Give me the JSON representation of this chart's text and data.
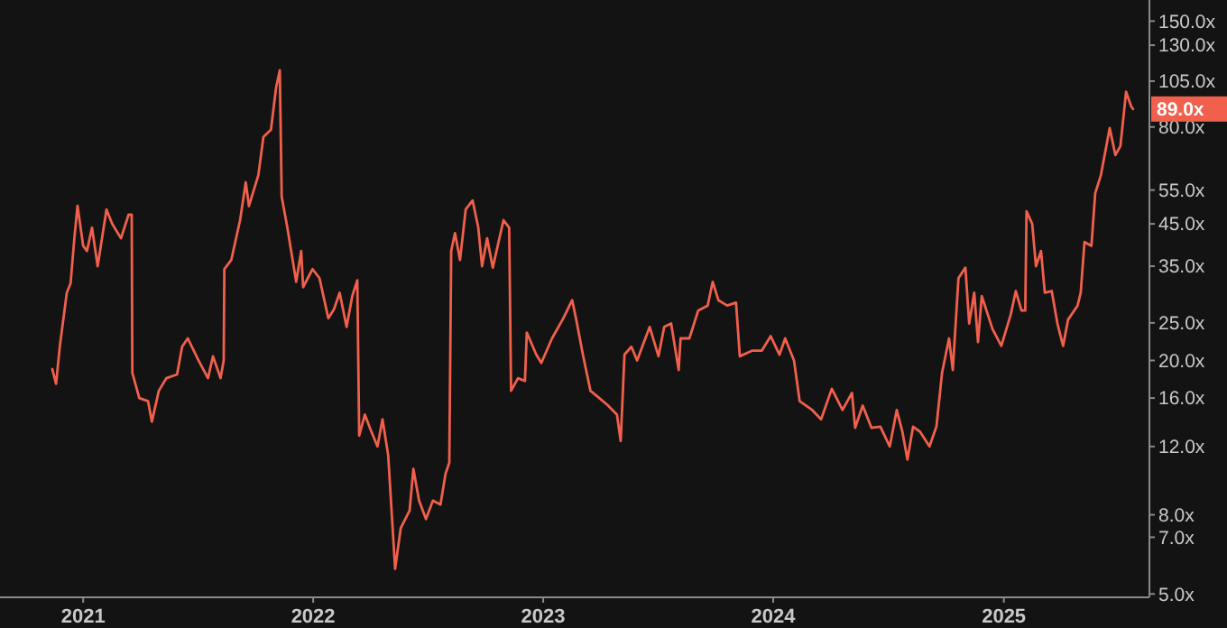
{
  "chart_data": {
    "type": "line",
    "log": true,
    "grid": false,
    "xlim": [
      "2020-08-22",
      "2025-08-20"
    ],
    "xticks": [
      {
        "value": "2021-01-01",
        "label": "2021"
      },
      {
        "value": "2022-01-01",
        "label": "2022"
      },
      {
        "value": "2023-01-01",
        "label": "2023"
      },
      {
        "value": "2024-01-01",
        "label": "2024"
      },
      {
        "value": "2025-01-01",
        "label": "2025"
      }
    ],
    "ylim": [
      4.9,
      170
    ],
    "yticks": [
      {
        "value": 5,
        "label": "5.0x"
      },
      {
        "value": 7,
        "label": "7.0x"
      },
      {
        "value": 8,
        "label": "8.0x"
      },
      {
        "value": 12,
        "label": "12.0x"
      },
      {
        "value": 16,
        "label": "16.0x"
      },
      {
        "value": 20,
        "label": "20.0x"
      },
      {
        "value": 25,
        "label": "25.0x"
      },
      {
        "value": 35,
        "label": "35.0x"
      },
      {
        "value": 45,
        "label": "45.0x"
      },
      {
        "value": 55,
        "label": "55.0x"
      },
      {
        "value": 80,
        "label": "80.0x"
      },
      {
        "value": 105,
        "label": "105.0x"
      },
      {
        "value": 130,
        "label": "130.0x"
      },
      {
        "value": 150,
        "label": "150.0x"
      }
    ],
    "annotations": [
      {
        "text": "89.0x",
        "x": "2025-07-25",
        "y": 89
      }
    ],
    "series": [
      {
        "color": "#f0604c",
        "x": [
          "2020-11-13",
          "2020-11-19",
          "2020-11-25",
          "2020-12-06",
          "2020-12-12",
          "2020-12-18",
          "2020-12-23",
          "2021-01-01",
          "2021-01-07",
          "2021-01-15",
          "2021-01-24",
          "2021-02-07",
          "2021-02-16",
          "2021-03-02",
          "2021-03-14",
          "2021-03-19",
          "2021-03-20",
          "2021-03-31",
          "2021-04-14",
          "2021-04-20",
          "2021-05-01",
          "2021-05-13",
          "2021-05-30",
          "2021-06-07",
          "2021-06-16",
          "2021-07-03",
          "2021-07-18",
          "2021-07-26",
          "2021-08-07",
          "2021-08-12",
          "2021-08-13",
          "2021-08-24",
          "2021-09-07",
          "2021-09-16",
          "2021-09-21",
          "2021-10-06",
          "2021-10-14",
          "2021-10-26",
          "2021-11-03",
          "2021-11-09",
          "2021-11-12",
          "2021-11-21",
          "2021-12-05",
          "2021-12-13",
          "2021-12-16",
          "2021-12-31",
          "2022-01-11",
          "2022-01-25",
          "2022-02-03",
          "2022-02-12",
          "2022-02-23",
          "2022-03-04",
          "2022-03-12",
          "2022-03-15",
          "2022-03-24",
          "2022-04-01",
          "2022-04-13",
          "2022-04-21",
          "2022-04-30",
          "2022-05-11",
          "2022-05-20",
          "2022-06-03",
          "2022-06-09",
          "2022-06-18",
          "2022-06-29",
          "2022-07-10",
          "2022-07-22",
          "2022-07-30",
          "2022-08-05",
          "2022-08-08",
          "2022-08-14",
          "2022-08-22",
          "2022-08-31",
          "2022-09-11",
          "2022-09-20",
          "2022-09-26",
          "2022-10-04",
          "2022-10-13",
          "2022-10-30",
          "2022-11-08",
          "2022-11-11",
          "2022-11-22",
          "2022-12-03",
          "2022-12-06",
          "2022-12-21",
          "2022-12-29",
          "2023-01-15",
          "2023-02-02",
          "2023-02-16",
          "2023-02-22",
          "2023-03-05",
          "2023-03-17",
          "2023-03-31",
          "2023-04-14",
          "2023-04-28",
          "2023-05-04",
          "2023-05-10",
          "2023-05-21",
          "2023-05-30",
          "2023-06-19",
          "2023-07-03",
          "2023-07-12",
          "2023-07-23",
          "2023-08-04",
          "2023-08-07",
          "2023-08-21",
          "2023-09-04",
          "2023-09-19",
          "2023-09-27",
          "2023-10-06",
          "2023-10-20",
          "2023-11-03",
          "2023-11-09",
          "2023-11-29",
          "2023-12-14",
          "2023-12-28",
          "2024-01-11",
          "2024-01-20",
          "2024-02-03",
          "2024-02-12",
          "2024-03-03",
          "2024-03-17",
          "2024-04-03",
          "2024-04-20",
          "2024-05-05",
          "2024-05-10",
          "2024-05-22",
          "2024-06-05",
          "2024-06-19",
          "2024-07-04",
          "2024-07-15",
          "2024-07-24",
          "2024-08-01",
          "2024-08-10",
          "2024-08-21",
          "2024-09-05",
          "2024-09-16",
          "2024-09-25",
          "2024-10-06",
          "2024-10-12",
          "2024-10-21",
          "2024-11-01",
          "2024-11-07",
          "2024-11-15",
          "2024-11-21",
          "2024-11-27",
          "2024-12-14",
          "2024-12-28",
          "2025-01-12",
          "2025-01-20",
          "2025-01-29",
          "2025-02-04",
          "2025-02-06",
          "2025-02-15",
          "2025-02-21",
          "2025-03-01",
          "2025-03-07",
          "2025-03-18",
          "2025-03-27",
          "2025-04-05",
          "2025-04-13",
          "2025-04-28",
          "2025-05-03",
          "2025-05-09",
          "2025-05-20",
          "2025-05-26",
          "2025-06-04",
          "2025-06-18",
          "2025-06-27",
          "2025-07-05",
          "2025-07-14",
          "2025-07-22",
          "2025-07-25"
        ],
        "values": [
          19,
          17.4,
          21.8,
          29.9,
          31.6,
          41.3,
          50.1,
          39.5,
          38.3,
          44,
          35,
          49,
          45,
          41.3,
          47.5,
          47.5,
          18.6,
          16,
          15.7,
          13.9,
          16.7,
          18,
          18.4,
          21.7,
          22.8,
          20,
          18,
          20.5,
          18,
          20,
          34.4,
          36.3,
          46,
          57.6,
          50,
          60.1,
          75.4,
          78.7,
          100.8,
          112,
          52.9,
          44,
          31.9,
          38.3,
          30.9,
          34.4,
          32.6,
          25.7,
          27.1,
          29.9,
          24.4,
          29.3,
          32.2,
          12.8,
          14.5,
          13.4,
          12,
          14.1,
          11.4,
          5.8,
          7.4,
          8.2,
          10.5,
          8.7,
          7.8,
          8.7,
          8.5,
          10.2,
          10.9,
          38.3,
          42.6,
          36.3,
          49,
          51.7,
          44,
          35,
          41.3,
          34.7,
          46,
          44,
          16.7,
          18,
          17.7,
          23.6,
          20.7,
          19.7,
          22.8,
          25.7,
          28.6,
          25.7,
          20.7,
          16.7,
          16,
          15.3,
          14.5,
          12.4,
          20.7,
          21.7,
          20,
          24.4,
          20.5,
          24.4,
          24.9,
          18.9,
          22.8,
          22.8,
          26.9,
          27.7,
          31.9,
          28.6,
          27.7,
          28.2,
          20.5,
          21.2,
          21.2,
          23.1,
          20.7,
          22.8,
          20,
          15.7,
          14.9,
          14.1,
          16.9,
          14.9,
          16.5,
          13.4,
          15.3,
          13.4,
          13.5,
          12,
          14.9,
          13.1,
          11.1,
          13.5,
          13.1,
          12,
          13.5,
          18.6,
          22.8,
          18.9,
          32.6,
          34.7,
          24.9,
          29.9,
          22.3,
          29.3,
          24.1,
          21.8,
          26.3,
          30.2,
          26.9,
          26.9,
          48.5,
          45,
          35,
          38.3,
          29.9,
          30.2,
          24.9,
          21.8,
          25.5,
          27.7,
          29.9,
          40.4,
          39.5,
          54,
          60.1,
          79.5,
          67.7,
          71.4,
          98.6,
          90.5,
          89
        ]
      }
    ]
  }
}
